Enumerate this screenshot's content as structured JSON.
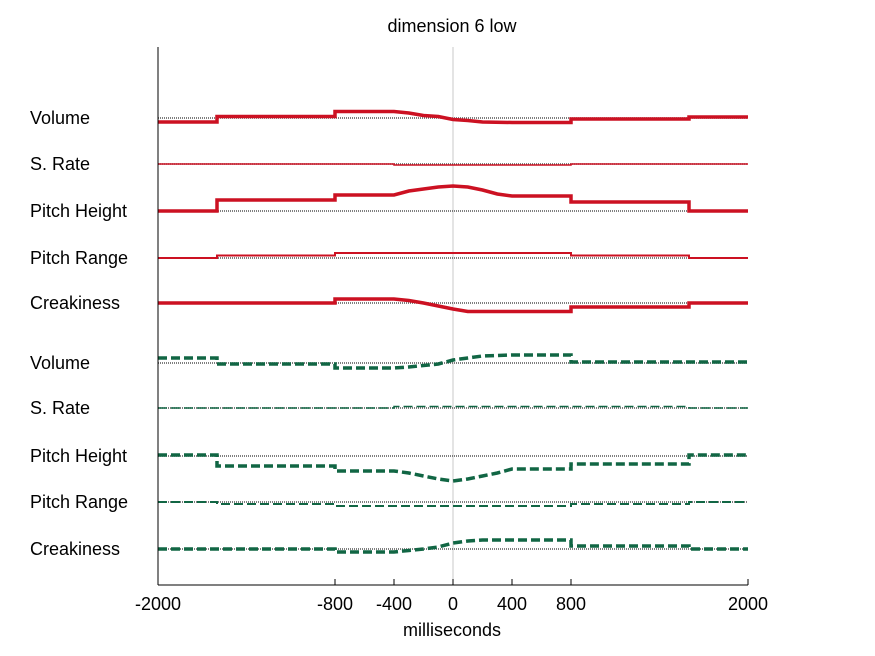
{
  "chart_data": {
    "type": "line",
    "title": "dimension  6 low",
    "xlabel": "milliseconds",
    "xlim": [
      -2000,
      2000
    ],
    "xticks": [
      -2000,
      -800,
      -400,
      0,
      400,
      800,
      2000
    ],
    "xtick_labels": [
      "-2000",
      "-800",
      "-400",
      "0",
      "400",
      "800",
      "2000"
    ],
    "grid": false,
    "center_line_at_x": 0,
    "value_units": "deviation from row baseline (pixels of offset, upward positive)",
    "colors": {
      "upper": "#cc1122",
      "lower": "#116644",
      "baseline": "#555555",
      "axis": "#000000",
      "center_line": "#c8c8c8"
    },
    "panels": [
      {
        "name": "upper",
        "style": "solid",
        "rows": [
          {
            "label": "Volume",
            "width": 3.5,
            "points": [
              [
                -2000,
                -4
              ],
              [
                -1600,
                -4
              ],
              [
                -1600,
                1.5
              ],
              [
                -800,
                1.5
              ],
              [
                -800,
                6.5
              ],
              [
                -400,
                6.5
              ],
              [
                -300,
                5
              ],
              [
                -200,
                2.5
              ],
              [
                -100,
                1.5
              ],
              [
                0,
                -1.5
              ],
              [
                100,
                -2.5
              ],
              [
                200,
                -4
              ],
              [
                400,
                -4.5
              ],
              [
                800,
                -4.5
              ],
              [
                800,
                -1
              ],
              [
                1600,
                -1
              ],
              [
                1600,
                1
              ],
              [
                2000,
                1
              ]
            ]
          },
          {
            "label": "S. Rate",
            "width": 1.5,
            "points": [
              [
                -2000,
                0
              ],
              [
                -400,
                0
              ],
              [
                -400,
                -1
              ],
              [
                800,
                -1
              ],
              [
                800,
                0
              ],
              [
                2000,
                0
              ]
            ]
          },
          {
            "label": "Pitch Height",
            "width": 3.5,
            "points": [
              [
                -2000,
                0
              ],
              [
                -1600,
                0
              ],
              [
                -1600,
                11
              ],
              [
                -800,
                11
              ],
              [
                -800,
                16
              ],
              [
                -400,
                16
              ],
              [
                -300,
                20
              ],
              [
                -200,
                22
              ],
              [
                -100,
                24
              ],
              [
                0,
                25
              ],
              [
                100,
                24
              ],
              [
                200,
                21
              ],
              [
                300,
                17
              ],
              [
                400,
                15
              ],
              [
                800,
                15
              ],
              [
                800,
                9
              ],
              [
                1600,
                9
              ],
              [
                1600,
                0
              ],
              [
                2000,
                0
              ]
            ]
          },
          {
            "label": "Pitch Range",
            "width": 2,
            "points": [
              [
                -2000,
                0
              ],
              [
                -1600,
                0
              ],
              [
                -1600,
                2.5
              ],
              [
                -800,
                2.5
              ],
              [
                -800,
                5
              ],
              [
                800,
                5
              ],
              [
                800,
                2.5
              ],
              [
                1600,
                2.5
              ],
              [
                1600,
                0
              ],
              [
                2000,
                0
              ]
            ]
          },
          {
            "label": "Creakiness",
            "width": 3.5,
            "points": [
              [
                -2000,
                0
              ],
              [
                -800,
                0
              ],
              [
                -800,
                4
              ],
              [
                -400,
                4
              ],
              [
                -300,
                2.5
              ],
              [
                -200,
                0
              ],
              [
                -100,
                -3
              ],
              [
                0,
                -6
              ],
              [
                100,
                -8.5
              ],
              [
                800,
                -8.5
              ],
              [
                800,
                -4
              ],
              [
                1600,
                -4
              ],
              [
                1600,
                0
              ],
              [
                2000,
                0
              ]
            ]
          }
        ]
      },
      {
        "name": "lower",
        "style": "dashed",
        "rows": [
          {
            "label": "Volume",
            "width": 3.5,
            "points": [
              [
                -2000,
                5
              ],
              [
                -1600,
                5
              ],
              [
                -1600,
                -1
              ],
              [
                -800,
                -1
              ],
              [
                -800,
                -5
              ],
              [
                -400,
                -5
              ],
              [
                -300,
                -4
              ],
              [
                -200,
                -2.5
              ],
              [
                -100,
                -1
              ],
              [
                0,
                3
              ],
              [
                100,
                5
              ],
              [
                200,
                7
              ],
              [
                400,
                8
              ],
              [
                800,
                8
              ],
              [
                800,
                1
              ],
              [
                2000,
                1
              ]
            ]
          },
          {
            "label": "S. Rate",
            "width": 1.5,
            "points": [
              [
                -2000,
                0
              ],
              [
                -400,
                0
              ],
              [
                -400,
                1.5
              ],
              [
                1600,
                1.5
              ],
              [
                1600,
                0
              ],
              [
                2000,
                0
              ]
            ]
          },
          {
            "label": "Pitch Height",
            "width": 3.5,
            "points": [
              [
                -2000,
                1
              ],
              [
                -1600,
                1
              ],
              [
                -1600,
                -10
              ],
              [
                -800,
                -10
              ],
              [
                -800,
                -15
              ],
              [
                -400,
                -15
              ],
              [
                -300,
                -17
              ],
              [
                -200,
                -20
              ],
              [
                -100,
                -23
              ],
              [
                0,
                -25
              ],
              [
                100,
                -23
              ],
              [
                200,
                -20
              ],
              [
                300,
                -17
              ],
              [
                400,
                -13
              ],
              [
                800,
                -13
              ],
              [
                800,
                -8
              ],
              [
                1600,
                -8
              ],
              [
                1600,
                1
              ],
              [
                2000,
                1
              ]
            ]
          },
          {
            "label": "Pitch Range",
            "width": 2,
            "points": [
              [
                -2000,
                0
              ],
              [
                -1600,
                0
              ],
              [
                -1600,
                -2
              ],
              [
                -800,
                -2
              ],
              [
                -800,
                -4
              ],
              [
                800,
                -4
              ],
              [
                800,
                -2
              ],
              [
                1600,
                -2
              ],
              [
                1600,
                0
              ],
              [
                2000,
                0
              ]
            ]
          },
          {
            "label": "Creakiness",
            "width": 3.5,
            "points": [
              [
                -2000,
                0
              ],
              [
                -800,
                0
              ],
              [
                -800,
                -3
              ],
              [
                -400,
                -3
              ],
              [
                -300,
                -1.5
              ],
              [
                -200,
                0
              ],
              [
                -100,
                2
              ],
              [
                0,
                6
              ],
              [
                100,
                8
              ],
              [
                200,
                9
              ],
              [
                800,
                9
              ],
              [
                800,
                3
              ],
              [
                1600,
                3
              ],
              [
                1600,
                0
              ],
              [
                2000,
                0
              ]
            ]
          }
        ]
      }
    ]
  }
}
